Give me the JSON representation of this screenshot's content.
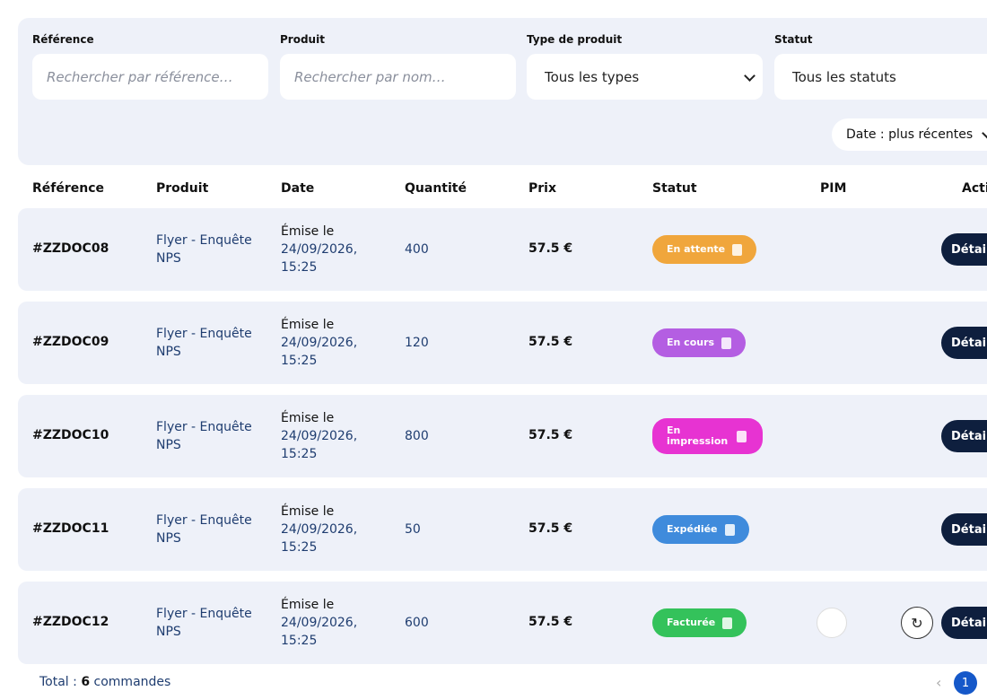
{
  "filters": {
    "fields": [
      {
        "label": "Référence",
        "placeholder": "Rechercher par référence…"
      },
      {
        "label": "Produit",
        "placeholder": "Rechercher par nom…"
      },
      {
        "label": "Type de produit",
        "value": "Tous les types"
      },
      {
        "label": "Statut",
        "value": "Tous les statuts"
      }
    ],
    "sort": "Date : plus récentes"
  },
  "table": {
    "headers": [
      "Référence",
      "Produit",
      "Date",
      "Quantité",
      "Prix",
      "Statut",
      "PIM",
      "Actions"
    ],
    "rows": [
      {
        "reference": "#ZZDOC08",
        "product": "Flyer - Enquête NPS",
        "date_prefix": "Émise le",
        "date": "24/09/2026, 15:25",
        "quantity": 400,
        "price": "57.5 €",
        "status": "En attente",
        "color": "#f0a63c",
        "pim": false,
        "action": "Détails"
      },
      {
        "reference": "#ZZDOC09",
        "product": "Flyer - Enquête NPS",
        "date_prefix": "Émise le",
        "date": "24/09/2026, 15:25",
        "quantity": 120,
        "price": "57.5 €",
        "status": "En cours",
        "color": "#b45ee2",
        "pim": false,
        "action": "Détails"
      },
      {
        "reference": "#ZZDOC10",
        "product": "Flyer - Enquête NPS",
        "date_prefix": "Émise le",
        "date": "24/09/2026, 15:25",
        "quantity": 800,
        "price": "57.5 €",
        "status": "En impression",
        "color": "#e733d2",
        "pim": false,
        "action": "Détails"
      },
      {
        "reference": "#ZZDOC11",
        "product": "Flyer - Enquête NPS",
        "date_prefix": "Émise le",
        "date": "24/09/2026, 15:25",
        "quantity": 50,
        "price": "57.5 €",
        "status": "Expédiée",
        "color": "#3f8bdc",
        "pim": false,
        "action": "Détails"
      },
      {
        "reference": "#ZZDOC12",
        "product": "Flyer - Enquête NPS",
        "date_prefix": "Émise le",
        "date": "24/09/2026, 15:25",
        "quantity": 600,
        "price": "57.5 €",
        "status": "Facturée",
        "color": "#34c25b",
        "pim": true,
        "action": "Détails"
      }
    ]
  },
  "footer": {
    "total_prefix": "Total :",
    "total_count": 6,
    "total_suffix": "commandes",
    "page": 1
  }
}
